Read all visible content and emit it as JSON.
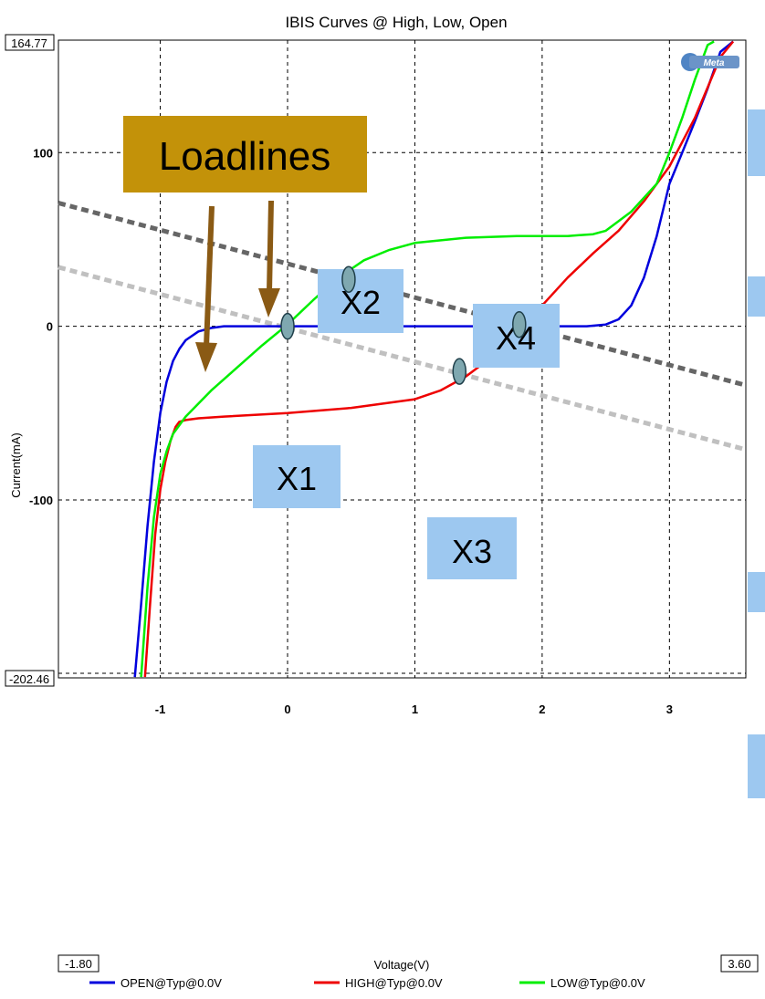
{
  "chart_data": {
    "type": "line",
    "title": "IBIS Curves @ High, Low, Open",
    "xlabel": "Voltage(V)",
    "ylabel": "Current(mA)",
    "xlim": [
      -1.8,
      3.6
    ],
    "ylim": [
      -202.46,
      164.77
    ],
    "xlim_labels": [
      "-1.80",
      "3.60"
    ],
    "ylim_labels": [
      "164.77",
      "-202.46"
    ],
    "x_ticks": [
      {
        "value": -1,
        "label": "-1"
      },
      {
        "value": 0,
        "label": "0"
      },
      {
        "value": 1,
        "label": "1"
      },
      {
        "value": 2,
        "label": "2"
      },
      {
        "value": 3,
        "label": "3"
      }
    ],
    "y_ticks": [
      {
        "value": 100,
        "label": "100"
      },
      {
        "value": 0,
        "label": "0"
      },
      {
        "value": -100,
        "label": "-100"
      }
    ],
    "grid": true,
    "legend_position": "bottom",
    "series": [
      {
        "name": "OPEN@Typ@0.0V",
        "color": "#0000dd",
        "x": [
          -1.2,
          -1.15,
          -1.1,
          -1.05,
          -1.0,
          -0.95,
          -0.9,
          -0.85,
          -0.8,
          -0.7,
          -0.6,
          -0.5,
          -0.4,
          0.0,
          0.5,
          1.0,
          1.5,
          2.0,
          2.2,
          2.35,
          2.5,
          2.6,
          2.7,
          2.8,
          2.9,
          3.0,
          3.1,
          3.2,
          3.3,
          3.4,
          3.5
        ],
        "y": [
          -202,
          -160,
          -115,
          -78,
          -50,
          -32,
          -20,
          -13,
          -8,
          -3,
          -1,
          0,
          0,
          0,
          0,
          0,
          0,
          0,
          0,
          0,
          1,
          4,
          12,
          28,
          52,
          82,
          100,
          118,
          137,
          158,
          164
        ]
      },
      {
        "name": "HIGH@Typ@0.0V",
        "color": "#ee0000",
        "x": [
          -1.12,
          -1.08,
          -1.04,
          -1.0,
          -0.96,
          -0.92,
          -0.88,
          -0.85,
          -0.8,
          -0.7,
          -0.5,
          0.0,
          0.5,
          1.0,
          1.2,
          1.4,
          1.6,
          1.8,
          2.0,
          2.2,
          2.4,
          2.6,
          2.8,
          3.0,
          3.2,
          3.4,
          3.5
        ],
        "y": [
          -202,
          -160,
          -120,
          -94,
          -78,
          -66,
          -58,
          -55,
          -54,
          -53,
          -52,
          -50,
          -47,
          -42,
          -37,
          -29,
          -18,
          -4,
          12,
          28,
          42,
          55,
          72,
          92,
          120,
          155,
          164
        ]
      },
      {
        "name": "LOW@Typ@0.0V",
        "color": "#00ee00",
        "x": [
          -1.15,
          -1.1,
          -1.05,
          -1.0,
          -0.95,
          -0.9,
          -0.8,
          -0.6,
          -0.4,
          -0.2,
          0.0,
          0.2,
          0.4,
          0.6,
          0.8,
          1.0,
          1.4,
          1.8,
          2.2,
          2.4,
          2.5,
          2.7,
          2.9,
          3.0,
          3.1,
          3.2,
          3.3,
          3.35
        ],
        "y": [
          -202,
          -150,
          -110,
          -85,
          -72,
          -62,
          -52,
          -37,
          -24,
          -11,
          1,
          15,
          28,
          38,
          44,
          48,
          51,
          52,
          52,
          53,
          55,
          66,
          82,
          100,
          120,
          142,
          162,
          164
        ]
      },
      {
        "color": "#666666",
        "dashed": true,
        "x": [
          -1.8,
          3.6
        ],
        "y": [
          71,
          -34
        ]
      },
      {
        "color": "#c0c0c0",
        "dashed": true,
        "x": [
          -1.8,
          3.6
        ],
        "y": [
          34,
          -71
        ]
      }
    ],
    "markers": [
      {
        "label": "X1",
        "x": 0.0,
        "y": 0.0
      },
      {
        "label": "X2",
        "x": 0.48,
        "y": 27
      },
      {
        "label": "X3",
        "x": 1.35,
        "y": -26
      },
      {
        "label": "X4",
        "x": 1.82,
        "y": 1
      }
    ],
    "annotations": {
      "loadlines_label": "Loadlines",
      "watermark": "Meta"
    }
  }
}
